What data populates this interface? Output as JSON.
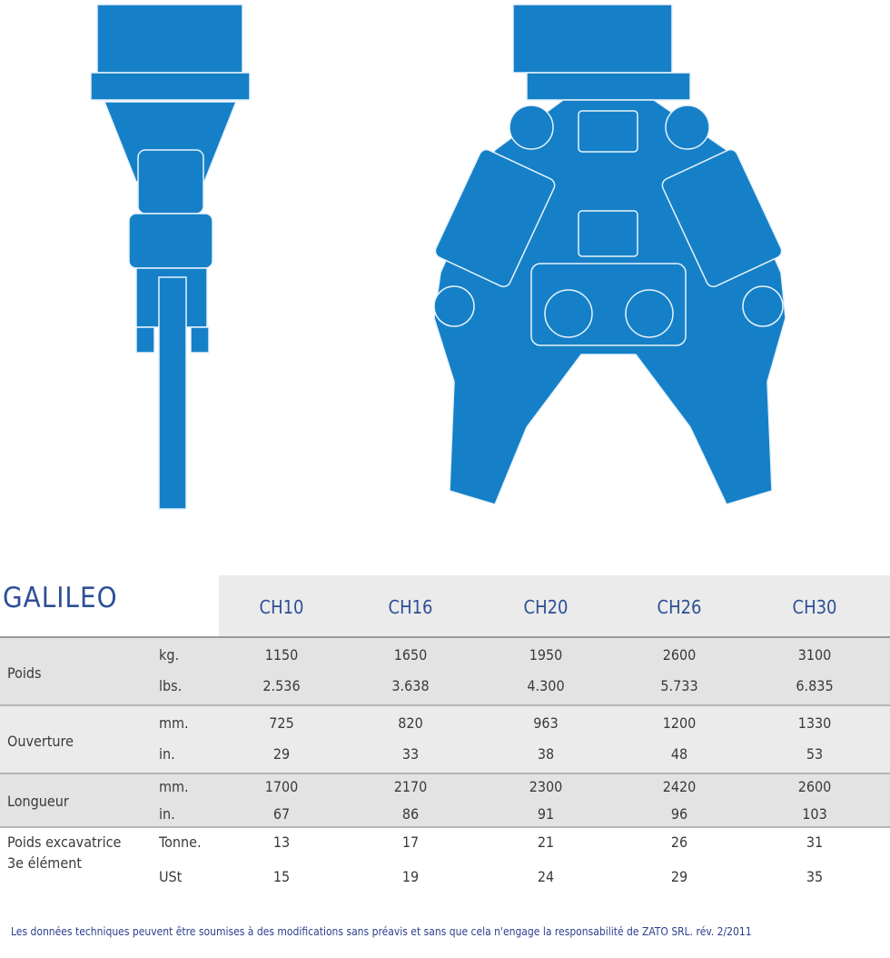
{
  "title": "GALILEO",
  "models": [
    "CH10",
    "CH16",
    "CH20",
    "CH26",
    "CH30"
  ],
  "rows": [
    {
      "label": "Poids",
      "units": [
        "kg.",
        "lbs."
      ],
      "values": [
        [
          "1150",
          "1650",
          "1950",
          "2600",
          "3100"
        ],
        [
          "2.536",
          "3.638",
          "4.300",
          "5.733",
          "6.835"
        ]
      ]
    },
    {
      "label": "Ouverture",
      "units": [
        "mm.",
        "in."
      ],
      "values": [
        [
          "725",
          "820",
          "963",
          "1200",
          "1330"
        ],
        [
          "29",
          "33",
          "38",
          "48",
          "53"
        ]
      ]
    },
    {
      "label": "Longueur",
      "units": [
        "mm.",
        "in."
      ],
      "values": [
        [
          "1700",
          "2170",
          "2300",
          "2420",
          "2600"
        ],
        [
          "67",
          "86",
          "91",
          "96",
          "103"
        ]
      ]
    },
    {
      "label": "Poids excavatrice",
      "label2": "3e élément",
      "units": [
        "Tonne.",
        "USt"
      ],
      "values": [
        [
          "13",
          "17",
          "21",
          "26",
          "31"
        ],
        [
          "15",
          "19",
          "24",
          "29",
          "35"
        ]
      ]
    }
  ],
  "footer": "Les données techniques peuvent être soumises à des modifications sans préavis et sans que cela n'engage la responsabilité de ZATO SRL. rév. 2/2011",
  "colors": {
    "accent": "#2d4f96",
    "machine": "#1580c8"
  }
}
